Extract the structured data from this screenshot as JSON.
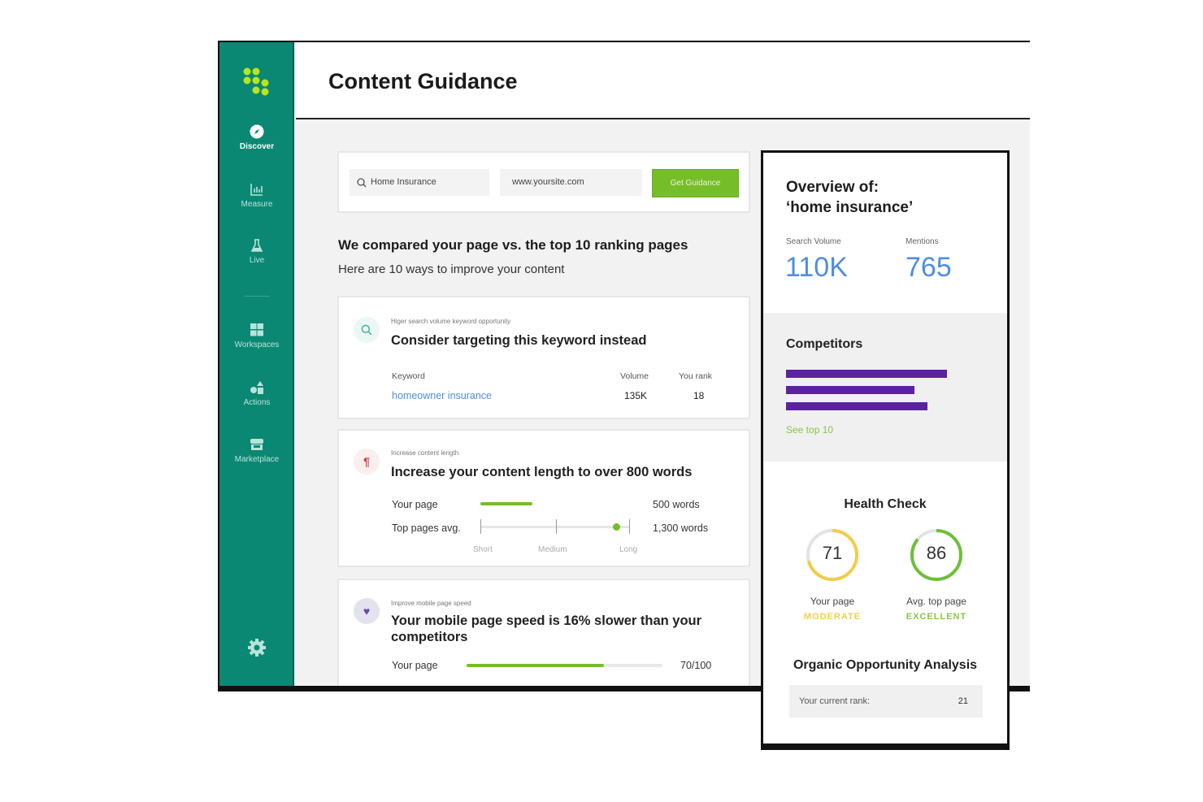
{
  "sidebar": {
    "items": [
      {
        "label": "Discover",
        "icon": "compass-icon",
        "active": true
      },
      {
        "label": "Measure",
        "icon": "bar-chart-icon"
      },
      {
        "label": "Live",
        "icon": "flask-icon"
      },
      {
        "label": "Workspaces",
        "icon": "grid-icon"
      },
      {
        "label": "Actions",
        "icon": "shapes-icon"
      },
      {
        "label": "Marketplace",
        "icon": "store-icon"
      }
    ],
    "settings_icon": "gear-icon"
  },
  "header": {
    "title": "Content Guidance"
  },
  "search": {
    "keyword": "Home Insurance",
    "url": "www.yoursite.com",
    "button": "Get Guidance"
  },
  "intro": {
    "heading": "We compared your page vs. the top 10 ranking pages",
    "subheading": "Here are 10 ways to improve your content"
  },
  "cards": {
    "keyword": {
      "eyebrow": "Higer search volume keyword opportunity",
      "title": "Consider targeting this keyword instead",
      "col_keyword": "Keyword",
      "col_volume": "Volume",
      "col_rank": "You rank",
      "keyword": "homeowner insurance",
      "volume": "135K",
      "rank": "18"
    },
    "length": {
      "eyebrow": "Increase content length",
      "title": "Increase your content length to over 800 words",
      "your_label": "Your page",
      "your_value": "500 words",
      "top_label": "Top pages avg.",
      "top_value": "1,300 words",
      "scale": [
        "Short",
        "Medium",
        "Long"
      ]
    },
    "speed": {
      "eyebrow": "Improve mobile page speed",
      "title": "Your mobile page speed is 16% slower than your competitors",
      "your_label": "Your page",
      "your_value": "70/100",
      "progress": 0.7
    }
  },
  "overview": {
    "title_line1": "Overview of:",
    "title_line2": "‘home insurance’",
    "search_volume_label": "Search Volume",
    "search_volume": "110K",
    "mentions_label": "Mentions",
    "mentions": "765",
    "competitors_title": "Competitors",
    "competitor_bars": [
      1.0,
      0.8,
      0.88
    ],
    "see_top": "See top 10",
    "health_title": "Health Check",
    "your_score": "71",
    "your_label": "Your page",
    "your_status": "MODERATE",
    "top_score": "86",
    "top_label": "Avg. top page",
    "top_status": "EXCELLENT",
    "organic_title": "Organic Opportunity Analysis",
    "rank_label": "Your current rank:",
    "rank_value": "21"
  },
  "colors": {
    "sidebar": "#0b8873",
    "accent_green": "#76bd2a",
    "purple": "#5a22a3",
    "blue": "#4f8ee0",
    "yellow": "#f1cd4a"
  }
}
